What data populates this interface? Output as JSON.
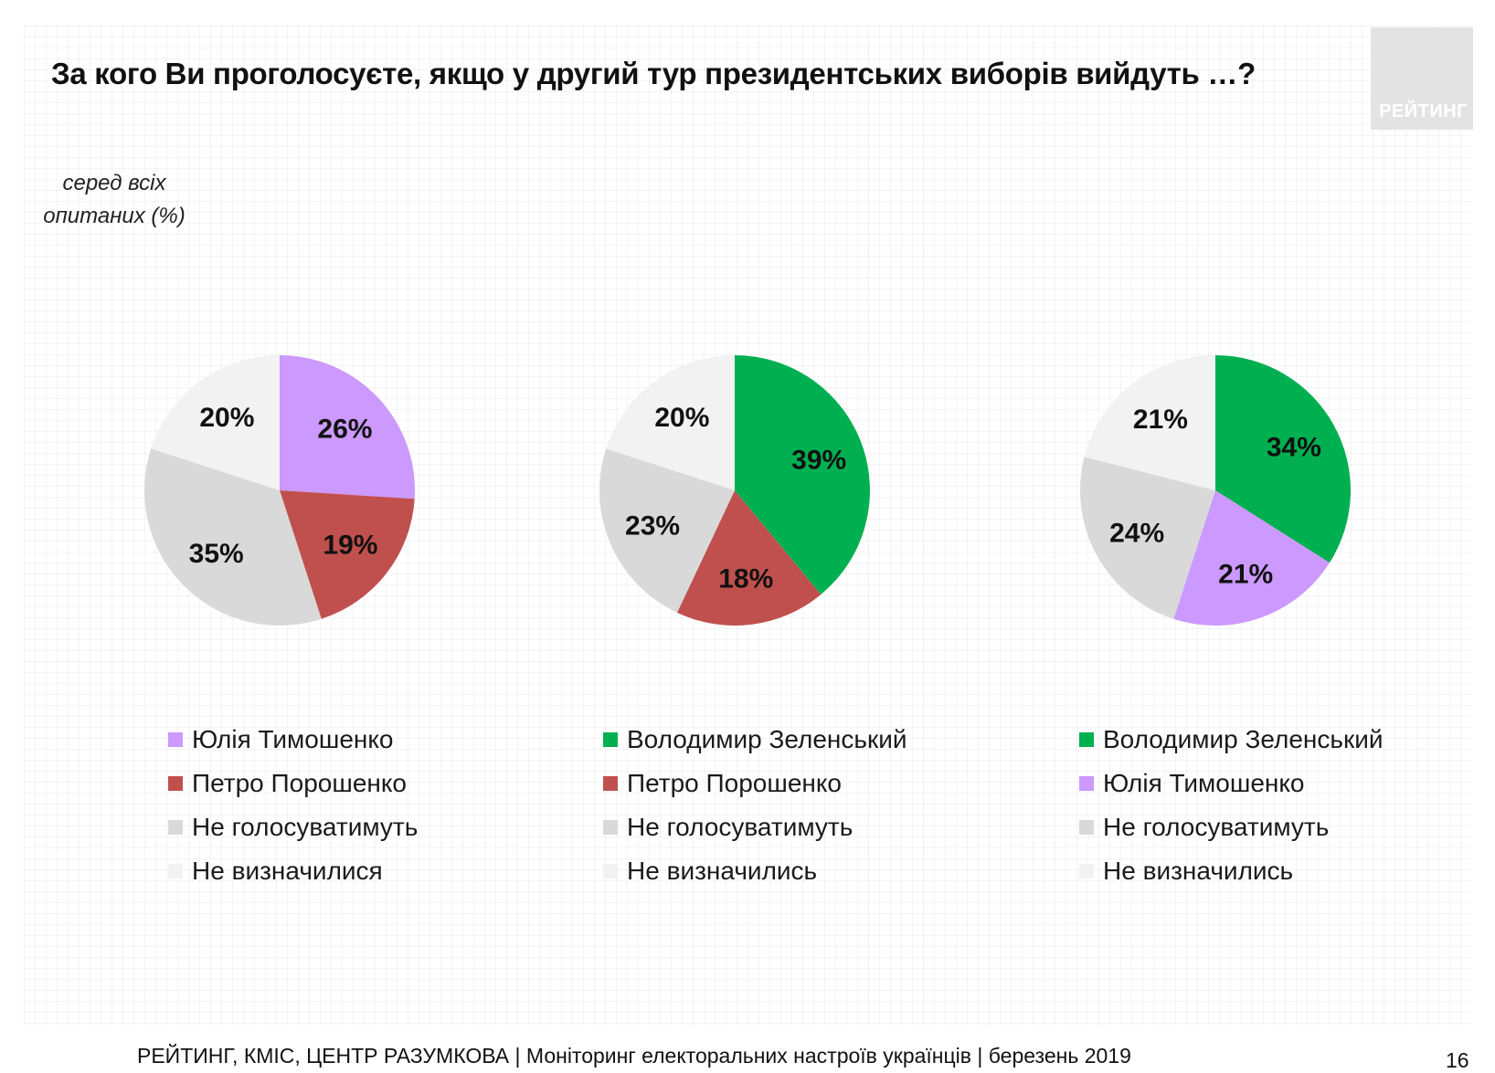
{
  "title": "За кого Ви проголосуєте, якщо у другий тур президентських виборів вийдуть …?",
  "logo_text": "РЕЙТИНГ",
  "subtitle": "серед всіх опитаних (%)",
  "footer": {
    "source": "РЕЙТИНГ, КМІС, ЦЕНТР РАЗУМКОВА  | Моніторинг електоральних настроїв українців | березень 2019",
    "page": "16"
  },
  "colors": {
    "purple": "#cc99ff",
    "red": "#c0504d",
    "green": "#00b050",
    "gray": "#d9d9d9",
    "lightgray": "#f2f2f2"
  },
  "chart_data": [
    {
      "type": "pie",
      "title": "",
      "labels": [
        "Юлія Тимошенко",
        "Петро Порошенко",
        "Не голосуватимуть",
        "Не визначилися"
      ],
      "values": [
        26,
        19,
        35,
        20
      ],
      "value_labels": [
        "26%",
        "19%",
        "35%",
        "20%"
      ],
      "colors": [
        "#cc99ff",
        "#c0504d",
        "#d9d9d9",
        "#f2f2f2"
      ],
      "legend": "bottom"
    },
    {
      "type": "pie",
      "title": "",
      "labels": [
        "Володимир Зеленський",
        "Петро Порошенко",
        "Не голосуватимуть",
        "Не визначились"
      ],
      "values": [
        39,
        18,
        23,
        20
      ],
      "value_labels": [
        "39%",
        "18%",
        "23%",
        "20%"
      ],
      "colors": [
        "#00b050",
        "#c0504d",
        "#d9d9d9",
        "#f2f2f2"
      ],
      "legend": "bottom"
    },
    {
      "type": "pie",
      "title": "",
      "labels": [
        "Володимир Зеленський",
        "Юлія Тимошенко",
        "Не голосуватимуть",
        "Не визначились"
      ],
      "values": [
        34,
        21,
        24,
        21
      ],
      "value_labels": [
        "34%",
        "21%",
        "24%",
        "21%"
      ],
      "colors": [
        "#00b050",
        "#cc99ff",
        "#d9d9d9",
        "#f2f2f2"
      ],
      "legend": "bottom"
    }
  ]
}
